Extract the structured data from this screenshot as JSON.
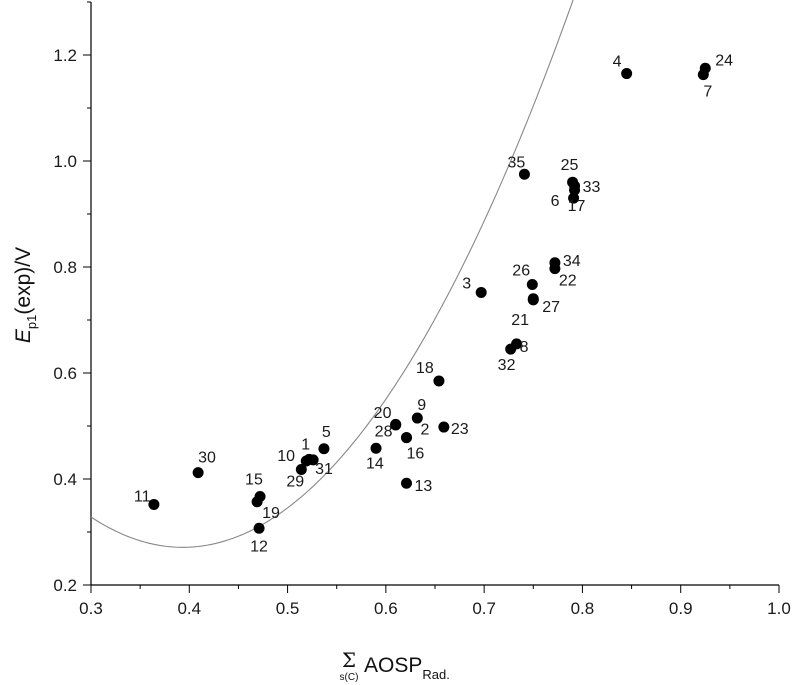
{
  "chart_data": {
    "type": "scatter",
    "title": "",
    "xlabel": {
      "symbol": "Σ",
      "sum_index": "s(C)",
      "main": "AOSP",
      "subscript": "Rad."
    },
    "ylabel": {
      "italic": "E",
      "subscript": "p1",
      "rest": "(exp)/V"
    },
    "xlim": [
      0.3,
      1.0
    ],
    "ylim": [
      0.2,
      1.3
    ],
    "xticks": [
      0.3,
      0.4,
      0.5,
      0.6,
      0.7,
      0.8,
      0.9,
      1.0
    ],
    "xtick_labels": [
      "0.3",
      "0.4",
      "0.5",
      "0.6",
      "0.7",
      "0.8",
      "0.9",
      "1.0"
    ],
    "yticks": [
      0.2,
      0.4,
      0.6,
      0.8,
      1.0,
      1.2
    ],
    "ytick_labels": [
      "0.2",
      "0.4",
      "0.6",
      "0.8",
      "1.0",
      "1.2"
    ],
    "grid": false,
    "points": [
      {
        "label": "1",
        "x": 0.522,
        "y": 0.437
      },
      {
        "label": "2",
        "x": 0.621,
        "y": 0.478
      },
      {
        "label": "3",
        "x": 0.697,
        "y": 0.752
      },
      {
        "label": "4",
        "x": 0.845,
        "y": 1.165
      },
      {
        "label": "5",
        "x": 0.537,
        "y": 0.457
      },
      {
        "label": "6",
        "x": 0.791,
        "y": 0.93
      },
      {
        "label": "7",
        "x": 0.923,
        "y": 1.163
      },
      {
        "label": "8",
        "x": 0.733,
        "y": 0.655
      },
      {
        "label": "9",
        "x": 0.632,
        "y": 0.515
      },
      {
        "label": "10",
        "x": 0.519,
        "y": 0.434
      },
      {
        "label": "11",
        "x": 0.364,
        "y": 0.352
      },
      {
        "label": "12",
        "x": 0.471,
        "y": 0.307
      },
      {
        "label": "13",
        "x": 0.621,
        "y": 0.392
      },
      {
        "label": "14",
        "x": 0.59,
        "y": 0.458
      },
      {
        "label": "15",
        "x": 0.472,
        "y": 0.367
      },
      {
        "label": "16",
        "x": 0.621,
        "y": 0.478
      },
      {
        "label": "17",
        "x": 0.792,
        "y": 0.945
      },
      {
        "label": "18",
        "x": 0.654,
        "y": 0.585
      },
      {
        "label": "19",
        "x": 0.469,
        "y": 0.357
      },
      {
        "label": "20",
        "x": 0.61,
        "y": 0.502
      },
      {
        "label": "21",
        "x": 0.75,
        "y": 0.738
      },
      {
        "label": "22",
        "x": 0.772,
        "y": 0.797
      },
      {
        "label": "23",
        "x": 0.659,
        "y": 0.498
      },
      {
        "label": "24",
        "x": 0.925,
        "y": 1.175
      },
      {
        "label": "25",
        "x": 0.79,
        "y": 0.96
      },
      {
        "label": "26",
        "x": 0.749,
        "y": 0.767
      },
      {
        "label": "27",
        "x": 0.75,
        "y": 0.74
      },
      {
        "label": "28",
        "x": 0.61,
        "y": 0.503
      },
      {
        "label": "29",
        "x": 0.514,
        "y": 0.418
      },
      {
        "label": "30",
        "x": 0.409,
        "y": 0.412
      },
      {
        "label": "31",
        "x": 0.526,
        "y": 0.436
      },
      {
        "label": "32",
        "x": 0.727,
        "y": 0.645
      },
      {
        "label": "33",
        "x": 0.792,
        "y": 0.953
      },
      {
        "label": "34",
        "x": 0.772,
        "y": 0.808
      },
      {
        "label": "35",
        "x": 0.741,
        "y": 0.975
      }
    ],
    "fit": {
      "type": "quadratic",
      "coefficients": [
        1.285,
        -5.154,
        6.55
      ],
      "x_range": [
        0.3,
        0.934
      ],
      "color": "#888888"
    },
    "marker_color": "#000000"
  }
}
